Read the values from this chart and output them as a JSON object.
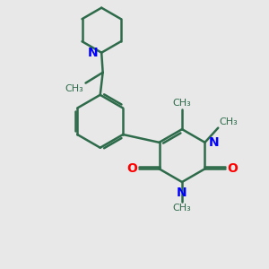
{
  "background_color": "#e8e8e8",
  "bond_color": "#2d6b4a",
  "N_color": "#0000ff",
  "O_color": "#ff0000",
  "bond_width": 1.8,
  "fig_size": [
    3.0,
    3.0
  ],
  "dpi": 100,
  "xlim": [
    0,
    10
  ],
  "ylim": [
    0,
    10
  ]
}
